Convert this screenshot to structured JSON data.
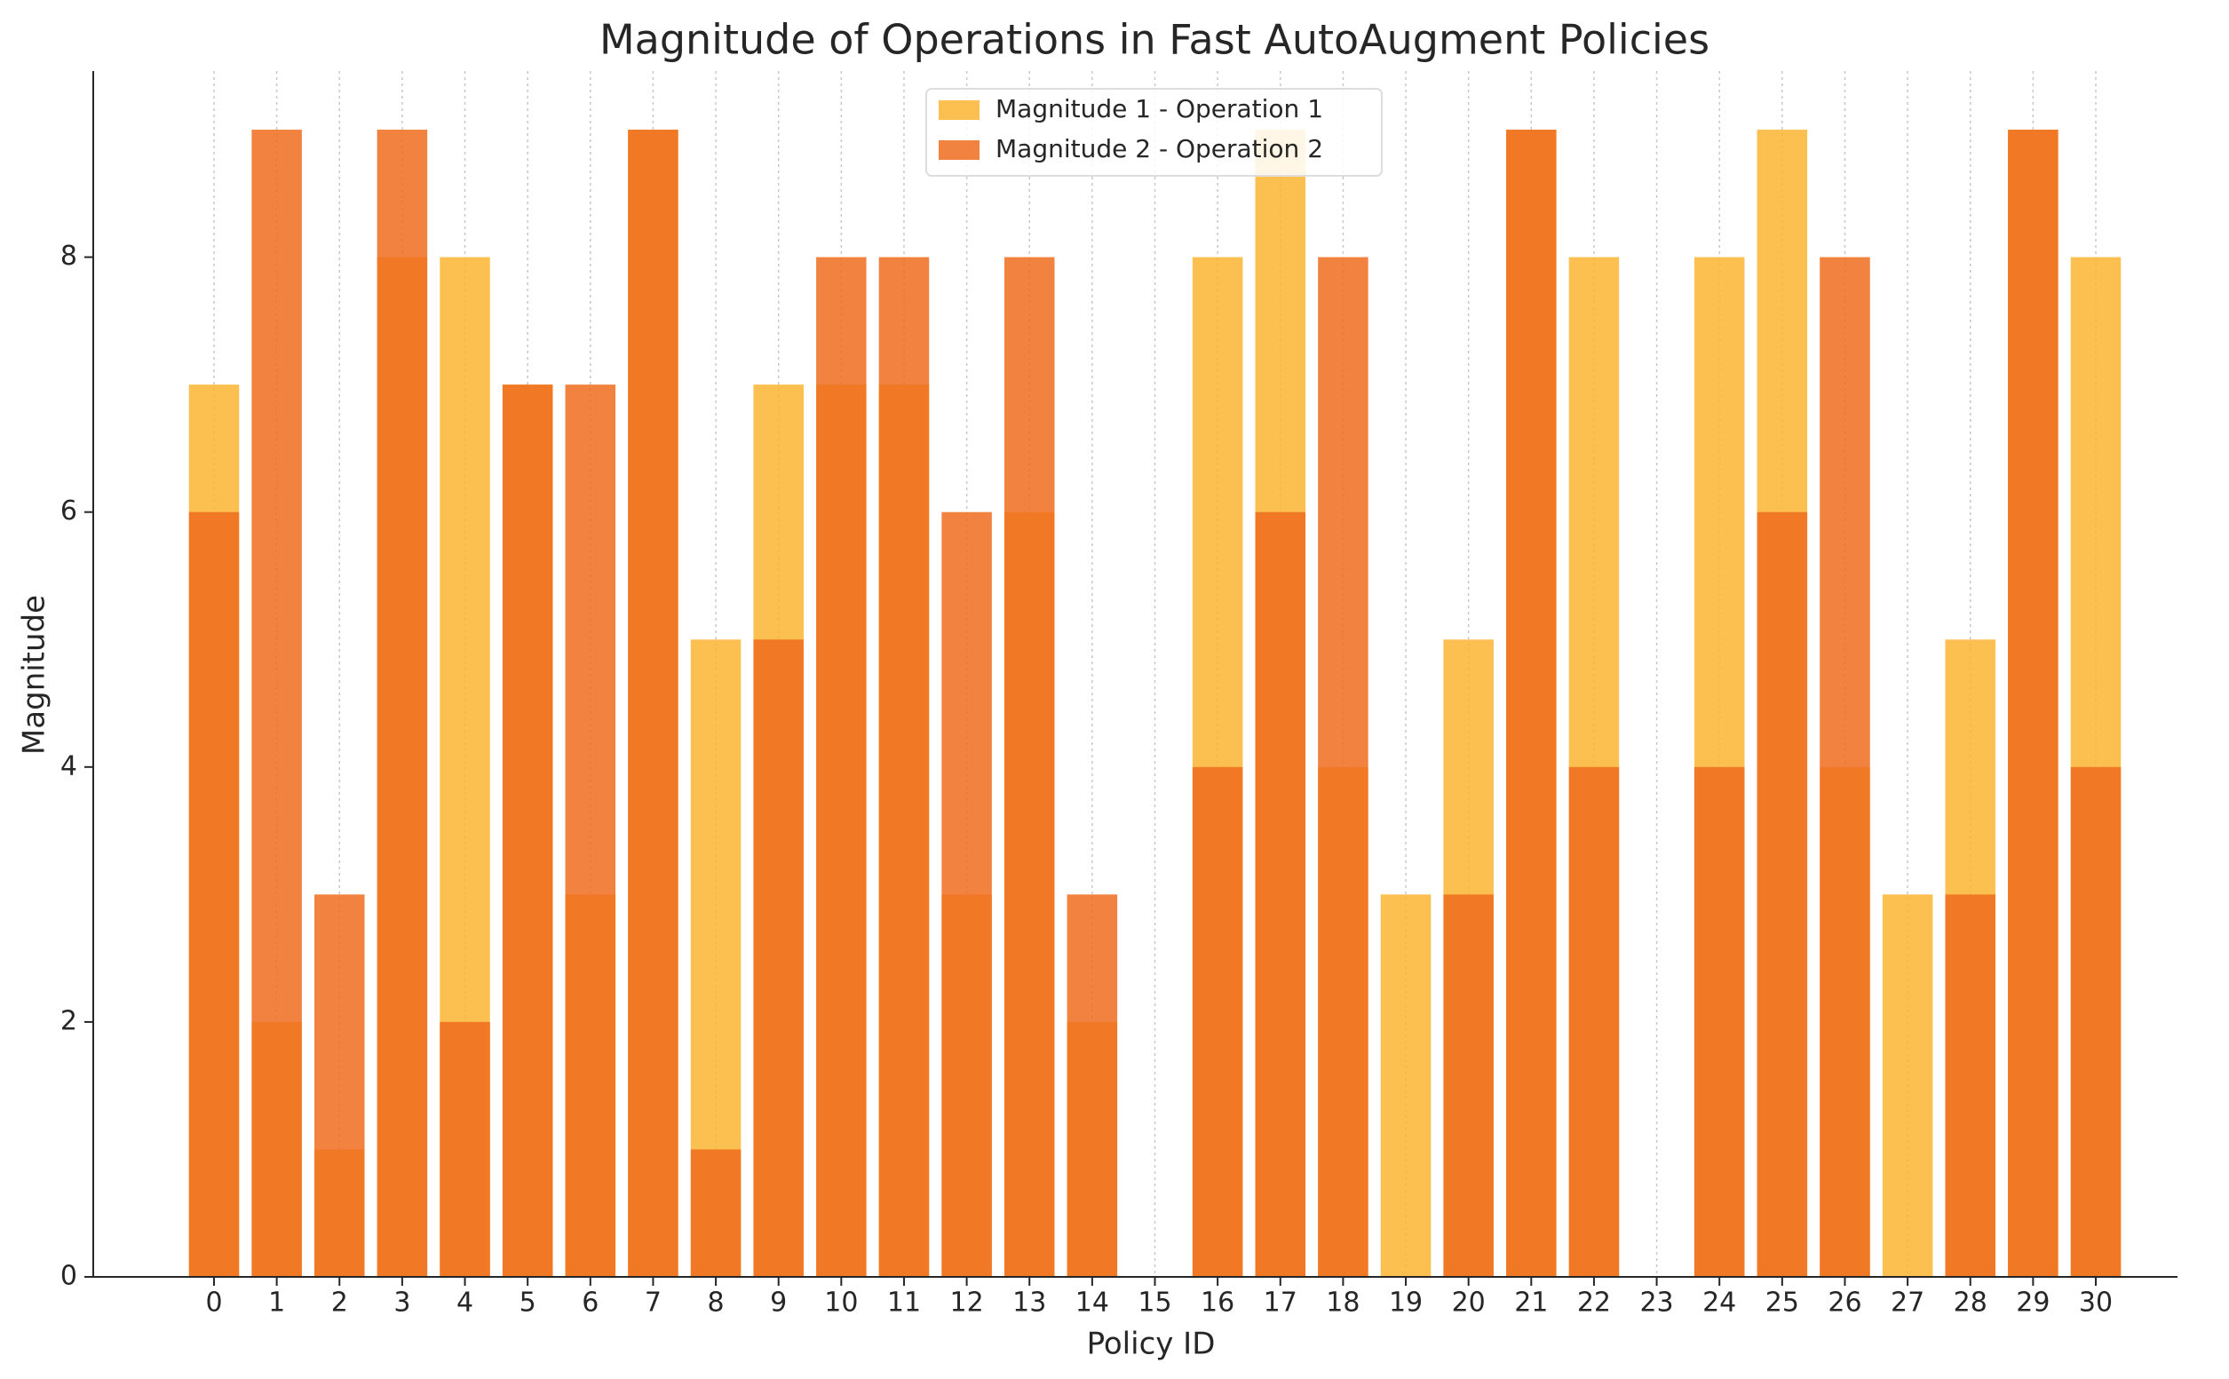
{
  "chart_data": {
    "type": "bar",
    "title": "Magnitude of Operations in Fast AutoAugment Policies",
    "x_label": "Policy ID",
    "y_label": "Magnitude",
    "categories": [
      "0",
      "1",
      "2",
      "3",
      "4",
      "5",
      "6",
      "7",
      "8",
      "9",
      "10",
      "11",
      "12",
      "13",
      "14",
      "15",
      "16",
      "17",
      "18",
      "19",
      "20",
      "21",
      "22",
      "23",
      "24",
      "25",
      "26",
      "27",
      "28",
      "29",
      "30"
    ],
    "series": [
      {
        "name": "Magnitude 1 - Operation 1",
        "color": "#fbb531",
        "values": [
          7,
          2,
          1,
          8,
          8,
          7,
          3,
          9,
          5,
          7,
          7,
          7,
          3,
          6,
          2,
          0,
          8,
          9,
          4,
          3,
          5,
          9,
          8,
          0,
          8,
          9,
          4,
          3,
          5,
          9,
          8
        ]
      },
      {
        "name": "Magnitude 2 - Operation 2",
        "color": "#ef6c1f",
        "values": [
          6,
          9,
          3,
          9,
          2,
          7,
          7,
          9,
          1,
          5,
          8,
          8,
          6,
          8,
          3,
          0,
          4,
          6,
          8,
          0,
          3,
          9,
          4,
          0,
          4,
          6,
          8,
          0,
          3,
          9,
          4
        ]
      }
    ],
    "ylim": [
      0,
      9.46
    ],
    "yticks": [
      0,
      2,
      4,
      6,
      8
    ],
    "grid": true,
    "legend": "upper center"
  }
}
